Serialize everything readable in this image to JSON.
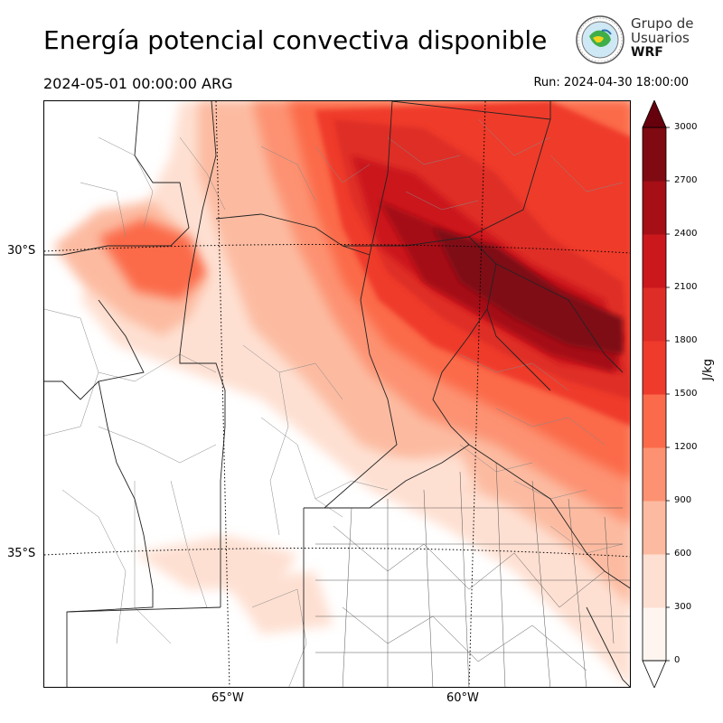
{
  "title": "Energía potencial convectiva disponible",
  "valid_time": "2024-05-01 00:00:00 ARG",
  "run_time": "Run: 2024-04-30 18:00:00",
  "logo": {
    "line1": "Grupo de",
    "line2": "Usuarios",
    "line3": "WRF"
  },
  "map": {
    "lat_labels": [
      "30°S",
      "35°S"
    ],
    "lon_labels": [
      "65°W",
      "60°W"
    ]
  },
  "colorbar": {
    "unit": "J/kg",
    "ticks": [
      "0",
      "300",
      "600",
      "900",
      "1200",
      "1500",
      "1800",
      "2100",
      "2400",
      "2700",
      "3000"
    ],
    "colors": [
      "#fff5f0",
      "#fee0d2",
      "#fcbba1",
      "#fc9272",
      "#fb6a4a",
      "#ef3b2c",
      "#de2d26",
      "#cb181d",
      "#a50f15",
      "#7f0a12",
      "#67000d"
    ]
  },
  "chart_data": {
    "type": "heatmap",
    "variable": "CAPE",
    "units": "J/kg",
    "levels": [
      0,
      300,
      600,
      900,
      1200,
      1500,
      1800,
      2100,
      2400,
      2700,
      3000
    ]
  }
}
